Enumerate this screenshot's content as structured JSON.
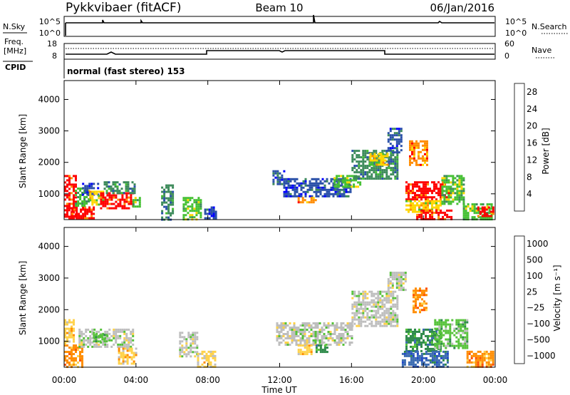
{
  "header": {
    "station": "Pykkvibaer (fitACF)",
    "beam": "Beam 10",
    "date": "06/Jan/2016"
  },
  "top_panels": {
    "nsky_label": "N.Sky",
    "nsky_ticks": [
      "10^5",
      "10^0"
    ],
    "nsearch_label": "N.Search",
    "nsearch_ticks": [
      "10^5",
      "10^0"
    ],
    "freq_label_line1": "Freq.",
    "freq_label_line2": "[MHz]",
    "freq_ticks": [
      "18",
      "8"
    ],
    "nave_label": "Nave",
    "nave_ticks": [
      "60",
      "0"
    ],
    "cpid_label": "CPID",
    "cpid_value": "normal (fast stereo) 153"
  },
  "chart_data": [
    {
      "type": "heatmap",
      "panel": "power",
      "ylabel": "Slant Range [km]",
      "ylim": [
        180,
        4600
      ],
      "yticks": [
        1000,
        2000,
        3000,
        4000
      ],
      "xlim_hours": [
        0,
        24
      ],
      "colorbar_label": "Power [dB]",
      "colorbar_ticks": [
        4,
        8,
        12,
        16,
        20,
        24,
        28
      ],
      "colorbar_range": [
        0,
        30
      ],
      "colors": [
        "#0000ff",
        "#2a50a8",
        "#3c8a5a",
        "#44c032",
        "#ffd700",
        "#ff8c00",
        "#ff0000"
      ],
      "regions": [
        {
          "t0": 0.0,
          "t1": 0.6,
          "r0": 200,
          "r1": 1600,
          "level": 6
        },
        {
          "t0": 0.4,
          "t1": 1.6,
          "r0": 200,
          "r1": 600,
          "level": 6
        },
        {
          "t0": 0.6,
          "t1": 1.4,
          "r0": 600,
          "r1": 1200,
          "level": 3
        },
        {
          "t0": 1.0,
          "t1": 1.9,
          "r0": 1000,
          "r1": 1350,
          "level": 1
        },
        {
          "t0": 1.4,
          "t1": 2.2,
          "r0": 650,
          "r1": 1100,
          "level": 4
        },
        {
          "t0": 2.0,
          "t1": 3.8,
          "r0": 550,
          "r1": 1050,
          "level": 6
        },
        {
          "t0": 2.2,
          "t1": 3.9,
          "r0": 1050,
          "r1": 1400,
          "level": 2
        },
        {
          "t0": 3.8,
          "t1": 4.2,
          "r0": 600,
          "r1": 900,
          "level": 3
        },
        {
          "t0": 5.4,
          "t1": 6.0,
          "r0": 200,
          "r1": 1300,
          "level": 2
        },
        {
          "t0": 6.6,
          "t1": 7.6,
          "r0": 200,
          "r1": 900,
          "level": 3
        },
        {
          "t0": 7.8,
          "t1": 8.4,
          "r0": 250,
          "r1": 600,
          "level": 1
        },
        {
          "t0": 11.6,
          "t1": 12.2,
          "r0": 1300,
          "r1": 1750,
          "level": 1
        },
        {
          "t0": 12.2,
          "t1": 16.0,
          "r0": 900,
          "r1": 1500,
          "level": 1
        },
        {
          "t0": 13.0,
          "t1": 14.0,
          "r0": 700,
          "r1": 900,
          "level": 5
        },
        {
          "t0": 15.0,
          "t1": 16.5,
          "r0": 1200,
          "r1": 1600,
          "level": 3
        },
        {
          "t0": 16.0,
          "t1": 18.5,
          "r0": 1500,
          "r1": 2400,
          "level": 2
        },
        {
          "t0": 17.0,
          "t1": 18.0,
          "r0": 1900,
          "r1": 2300,
          "level": 4
        },
        {
          "t0": 18.0,
          "t1": 18.8,
          "r0": 2300,
          "r1": 3100,
          "level": 1
        },
        {
          "t0": 19.2,
          "t1": 20.2,
          "r0": 1900,
          "r1": 2700,
          "level": 5
        },
        {
          "t0": 19.0,
          "t1": 21.4,
          "r0": 800,
          "r1": 1400,
          "level": 6
        },
        {
          "t0": 19.0,
          "t1": 21.0,
          "r0": 400,
          "r1": 800,
          "level": 4
        },
        {
          "t0": 19.6,
          "t1": 21.6,
          "r0": 200,
          "r1": 500,
          "level": 6
        },
        {
          "t0": 21.0,
          "t1": 22.2,
          "r0": 700,
          "r1": 1600,
          "level": 3
        },
        {
          "t0": 22.2,
          "t1": 23.8,
          "r0": 200,
          "r1": 700,
          "level": 3
        },
        {
          "t0": 23.0,
          "t1": 23.9,
          "r0": 300,
          "r1": 600,
          "level": 6
        }
      ]
    },
    {
      "type": "heatmap",
      "panel": "velocity",
      "ylabel": "Slant Range [km]",
      "ylim": [
        180,
        4600
      ],
      "yticks": [
        1000,
        2000,
        3000,
        4000
      ],
      "xlim_hours": [
        0,
        24
      ],
      "colorbar_label": "Velocity [m s⁻¹]",
      "colorbar_ticks": [
        "1000",
        "500",
        "100",
        "25",
        "−25",
        "−100",
        "−500",
        "−1000"
      ],
      "colors": [
        "#1e46c8",
        "#3a6ab0",
        "#2e8a4a",
        "#56c23a",
        "#bebebe",
        "#ffd24a",
        "#ff8c00",
        "#ff5000",
        "#ff0000"
      ],
      "regions": [
        {
          "t0": 0.0,
          "t1": 1.0,
          "r0": 200,
          "r1": 900,
          "level": 6
        },
        {
          "t0": 0.0,
          "t1": 0.5,
          "r0": 900,
          "r1": 1700,
          "level": 5
        },
        {
          "t0": 0.8,
          "t1": 3.8,
          "r0": 800,
          "r1": 1400,
          "level": 4
        },
        {
          "t0": 1.6,
          "t1": 2.4,
          "r0": 1000,
          "r1": 1300,
          "level": 3
        },
        {
          "t0": 3.0,
          "t1": 4.0,
          "r0": 300,
          "r1": 800,
          "level": 5
        },
        {
          "t0": 6.4,
          "t1": 7.4,
          "r0": 500,
          "r1": 1300,
          "level": 4
        },
        {
          "t0": 7.4,
          "t1": 8.4,
          "r0": 200,
          "r1": 700,
          "level": 5
        },
        {
          "t0": 11.8,
          "t1": 16.0,
          "r0": 900,
          "r1": 1600,
          "level": 4
        },
        {
          "t0": 13.0,
          "t1": 13.8,
          "r0": 600,
          "r1": 900,
          "level": 5
        },
        {
          "t0": 14.0,
          "t1": 14.6,
          "r0": 650,
          "r1": 900,
          "level": 2
        },
        {
          "t0": 16.0,
          "t1": 18.6,
          "r0": 1500,
          "r1": 2600,
          "level": 4
        },
        {
          "t0": 18.0,
          "t1": 19.0,
          "r0": 2600,
          "r1": 3200,
          "level": 4
        },
        {
          "t0": 19.4,
          "t1": 20.2,
          "r0": 1900,
          "r1": 2700,
          "level": 6
        },
        {
          "t0": 19.0,
          "t1": 21.0,
          "r0": 700,
          "r1": 1400,
          "level": 2
        },
        {
          "t0": 20.6,
          "t1": 22.4,
          "r0": 800,
          "r1": 1700,
          "level": 3
        },
        {
          "t0": 18.8,
          "t1": 21.4,
          "r0": 200,
          "r1": 700,
          "level": 1
        },
        {
          "t0": 22.4,
          "t1": 23.9,
          "r0": 200,
          "r1": 700,
          "level": 6
        }
      ]
    }
  ],
  "xaxis": {
    "ticks": [
      "00:00",
      "04:00",
      "08:00",
      "12:00",
      "16:00",
      "20:00",
      "00:00"
    ],
    "label": "Time UT"
  }
}
